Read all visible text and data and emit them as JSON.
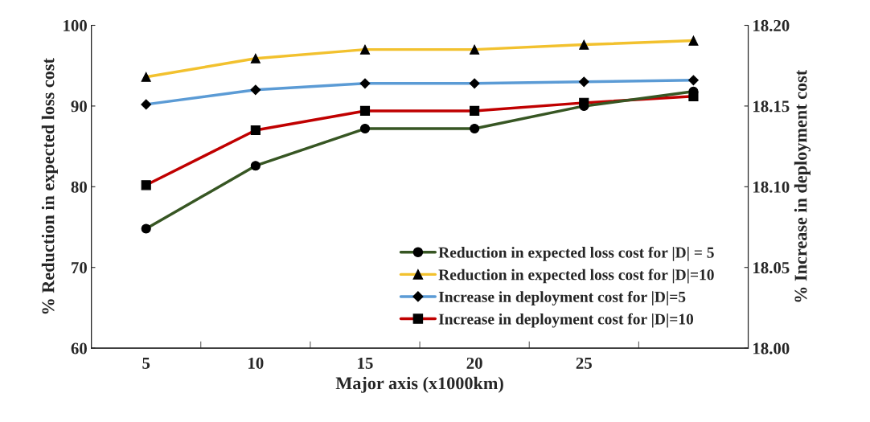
{
  "chart_data": {
    "type": "line",
    "xlabel": "Major axis (x1000km)",
    "ylabel": "% Reduction in expected loss cost",
    "y2label": "% Increase in deployment cost",
    "categories": [
      "5",
      "10",
      "15",
      "20",
      "25",
      null
    ],
    "series": [
      {
        "name": "Reduction in expected loss cost for |D| = 5",
        "color": "#375623",
        "marker": "circle",
        "values": [
          74.8,
          82.6,
          87.2,
          87.2,
          90.0,
          91.8
        ]
      },
      {
        "name": "Reduction in expected loss cost for |D|=10",
        "color": "#f2c12e",
        "marker": "triangle",
        "values": [
          93.6,
          95.9,
          97.0,
          97.0,
          97.6,
          98.1
        ]
      },
      {
        "name": "Increase in deployment cost for |D|=5",
        "color": "#5b9bd5",
        "marker": "diamond",
        "axis": "y2",
        "values": [
          18.151,
          18.16,
          18.164,
          18.164,
          18.165,
          18.166
        ]
      },
      {
        "name": "Increase in deployment cost for |D|=10",
        "color": "#c00000",
        "marker": "square",
        "axis": "y2",
        "values": [
          18.101,
          18.135,
          18.147,
          18.147,
          18.152,
          18.156
        ]
      }
    ],
    "ylim": [
      60,
      100
    ],
    "yticks": [
      60,
      70,
      80,
      90,
      100
    ],
    "y2lim": [
      18.0,
      18.2
    ],
    "y2ticks": [
      {
        "value": 18.0,
        "label": "18.00"
      },
      {
        "value": 18.05,
        "label": "18.05"
      },
      {
        "value": 18.1,
        "label": "18.10"
      },
      {
        "value": 18.15,
        "label": "18.15"
      },
      {
        "value": 18.2,
        "label": "18.20"
      }
    ],
    "grid": false,
    "legend": "bottom right",
    "line_style": "solid"
  }
}
